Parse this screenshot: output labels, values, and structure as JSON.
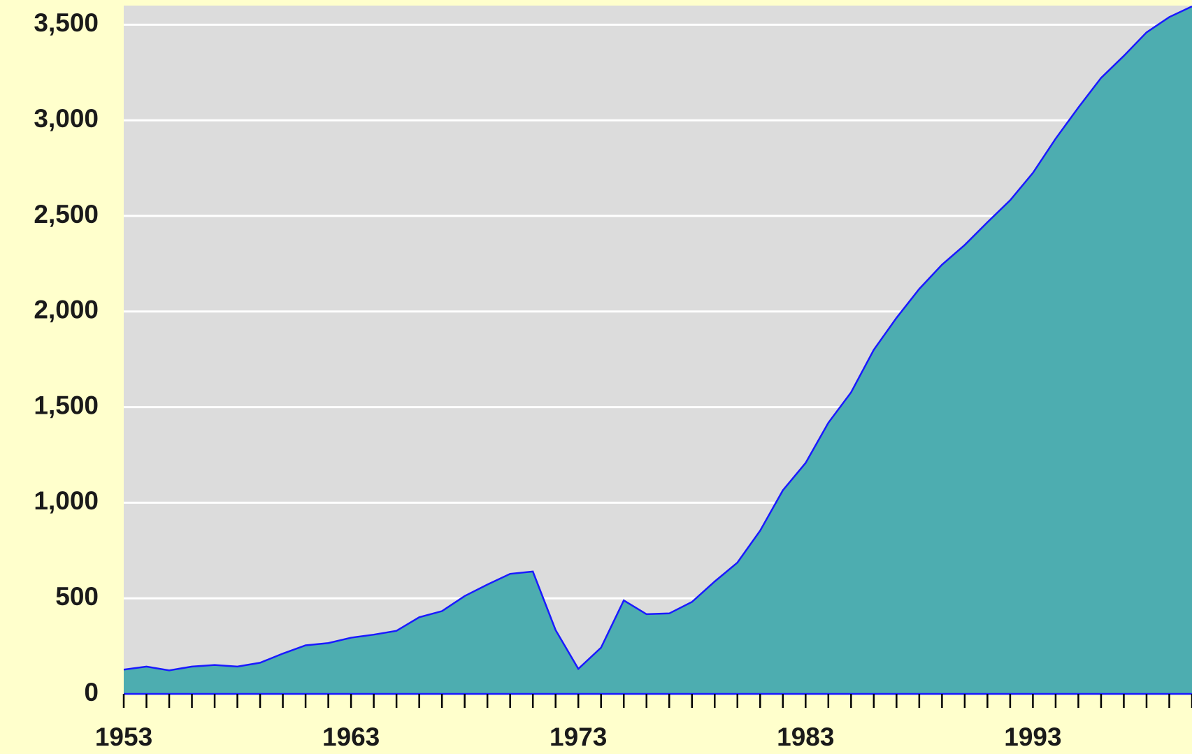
{
  "chart_data": {
    "type": "area",
    "x": [
      1953,
      1954,
      1955,
      1956,
      1957,
      1958,
      1959,
      1960,
      1961,
      1962,
      1963,
      1964,
      1965,
      1966,
      1967,
      1968,
      1969,
      1970,
      1971,
      1972,
      1973,
      1974,
      1975,
      1976,
      1977,
      1978,
      1979,
      1980,
      1981,
      1982,
      1983,
      1984,
      1985,
      1986,
      1987,
      1988,
      1989,
      1990,
      1991,
      1992,
      1993,
      1994,
      1995,
      1996,
      1997,
      1998,
      1999,
      2000
    ],
    "values": [
      127,
      143,
      123,
      143,
      151,
      143,
      163,
      211,
      254,
      266,
      294,
      310,
      330,
      401,
      433,
      512,
      572,
      628,
      640,
      334,
      131,
      242,
      489,
      417,
      421,
      481,
      588,
      687,
      854,
      1065,
      1208,
      1418,
      1577,
      1800,
      1967,
      2118,
      2245,
      2348,
      2467,
      2582,
      2725,
      2904,
      3067,
      3222,
      3337,
      3460,
      3540,
      3596
    ],
    "color": "#4dadb0",
    "line_color": "#1a1aff",
    "xlim": [
      1953,
      2000
    ],
    "xticks": [
      1953,
      1963,
      1973,
      1983,
      1993
    ],
    "ylim": [
      0,
      3600
    ],
    "yticks": [
      0,
      500,
      {
        "value": 1000,
        "label": "1,000"
      },
      {
        "value": 1500,
        "label": "1,500"
      },
      {
        "value": 2000,
        "label": "2,000"
      },
      {
        "value": 2500,
        "label": "2,500"
      },
      {
        "value": 3000,
        "label": "3,000"
      },
      {
        "value": 3500,
        "label": "3,500"
      }
    ],
    "grid": true
  }
}
